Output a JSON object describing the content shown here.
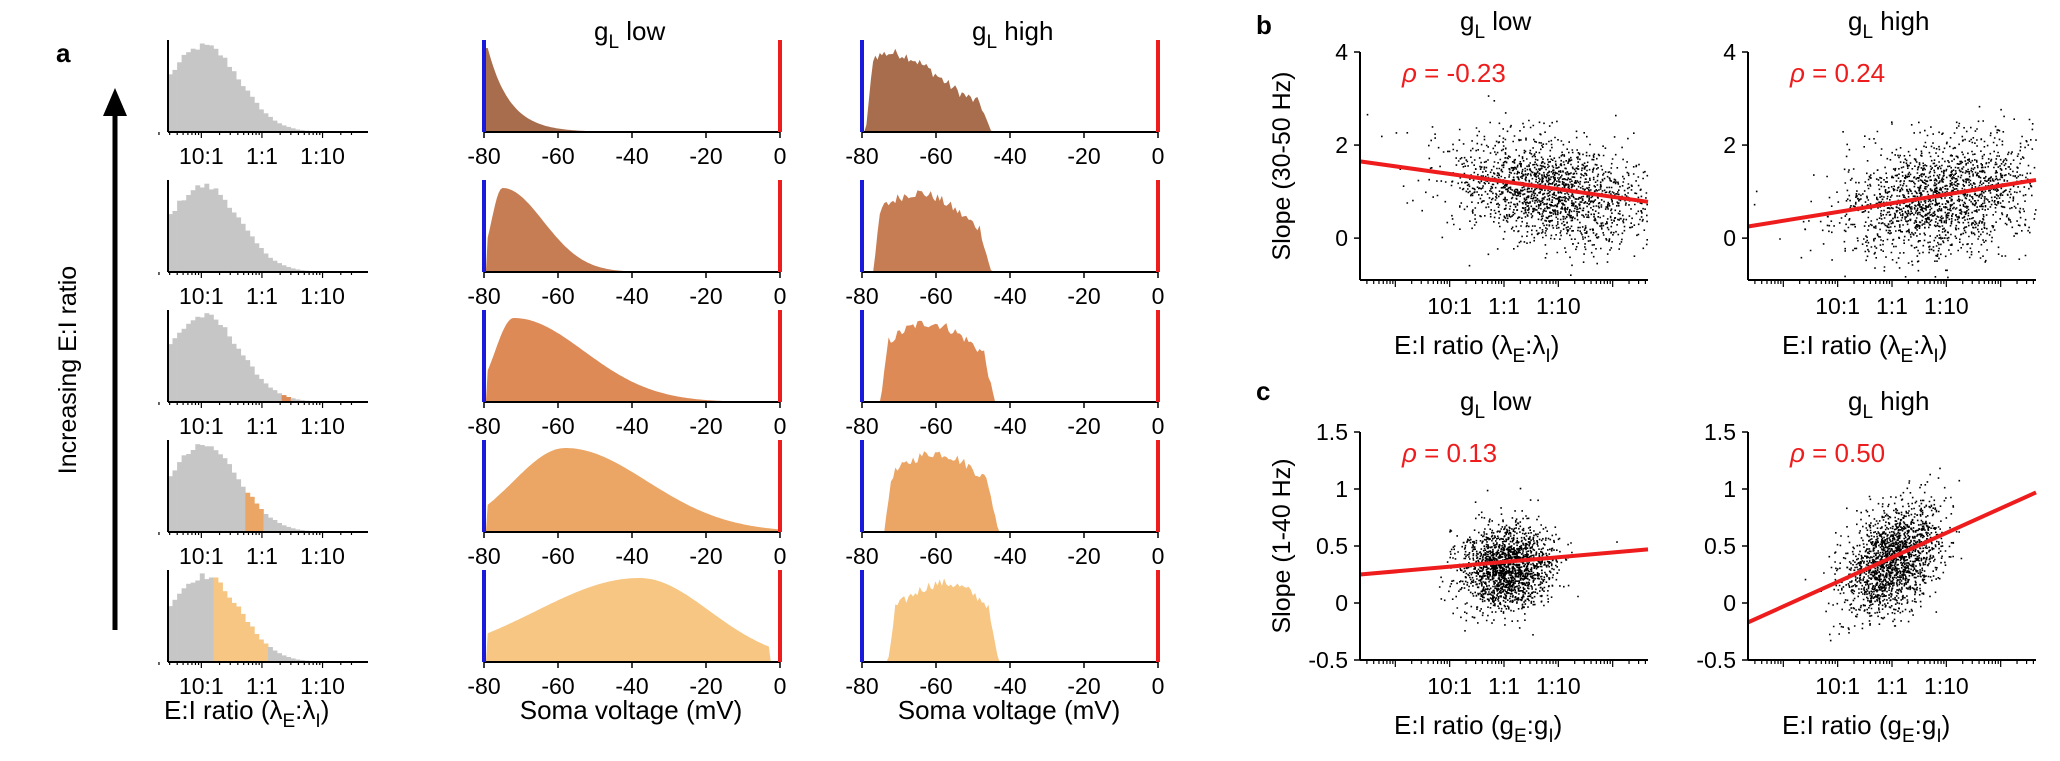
{
  "panel_labels": [
    "a",
    "b",
    "c"
  ],
  "side_label": "Increasing E:I ratio",
  "colors": {
    "gray": "#c6c6c6",
    "blue": "#1a1adc",
    "red": "#ee1c1c",
    "rows": [
      "#a86d4c",
      "#c77d53",
      "#dd8a57",
      "#eba666",
      "#f6c682"
    ]
  },
  "chart_data": [
    {
      "id": "a-ei-histograms",
      "type": "area",
      "description_rows": 5,
      "x_scale": "log",
      "xticklabels": [
        "10:1",
        "1:1",
        "1:10"
      ],
      "xlabel_parts": [
        "E:I ratio (λ",
        "E",
        ":λ",
        "I",
        ")"
      ],
      "gray_distribution_peak": "1:10",
      "highlighted_bins": [
        {
          "row": 1,
          "range": [
            "1:25",
            "1:40"
          ]
        },
        {
          "row": 2,
          "range": [
            "1:7",
            "1:11"
          ]
        },
        {
          "row": 3,
          "range": [
            "1:2",
            "1:3"
          ]
        },
        {
          "row": 4,
          "range": [
            "1:1.1",
            "2:1"
          ]
        },
        {
          "row": 5,
          "range": [
            "1:1.2",
            "6:1"
          ]
        }
      ]
    },
    {
      "id": "a-voltage-gl-low",
      "type": "area",
      "title_main": "g",
      "title_sub": "L",
      "title_rest": " low",
      "xlim": [
        -80,
        0
      ],
      "xticks": [
        -80,
        -60,
        -40,
        -20,
        0
      ],
      "xticklabels": [
        "-80",
        "-60",
        "-40",
        "-20",
        "0"
      ],
      "xlabel": "Soma voltage (mV)",
      "markers": {
        "blue_at": -80,
        "red_at": 0
      },
      "rows": [
        {
          "row": 1,
          "shape": "decay",
          "peak_x": -79,
          "width": 6
        },
        {
          "row": 2,
          "shape": "skewed",
          "peak_x": -75,
          "left": 3,
          "right": 11
        },
        {
          "row": 3,
          "shape": "skewed",
          "peak_x": -72,
          "left": 5,
          "right": 19
        },
        {
          "row": 4,
          "shape": "skewed",
          "peak_x": -58,
          "left": 14,
          "right": 22
        },
        {
          "row": 5,
          "shape": "skewed",
          "peak_x": -38,
          "left": 28,
          "right": 19,
          "cutoff": -3
        }
      ]
    },
    {
      "id": "a-voltage-gl-high",
      "type": "area",
      "title_main": "g",
      "title_sub": "L",
      "title_rest": " high",
      "xlim": [
        -80,
        0
      ],
      "xticks": [
        -80,
        -60,
        -40,
        -20,
        0
      ],
      "xticklabels": [
        "-80",
        "-60",
        "-40",
        "-20",
        "0"
      ],
      "xlabel": "Soma voltage (mV)",
      "markers": {
        "blue_at": -80,
        "red_at": 0
      },
      "rows": [
        {
          "row": 1,
          "range": [
            -79,
            -45
          ],
          "peak_x": -72
        },
        {
          "row": 2,
          "range": [
            -77,
            -45
          ],
          "peak_x": -65
        },
        {
          "row": 3,
          "range": [
            -75,
            -44
          ],
          "peak_x": -62
        },
        {
          "row": 4,
          "range": [
            -74,
            -43
          ],
          "peak_x": -60
        },
        {
          "row": 5,
          "range": [
            -73,
            -43
          ],
          "peak_x": -58
        }
      ]
    },
    {
      "id": "b-left",
      "type": "scatter",
      "title_main": "g",
      "title_sub": "L",
      "title_rest": " low",
      "x_scale": "log",
      "xlim": [
        2.65,
        -2.65
      ],
      "xticklabels": [
        "10:1",
        "1:1",
        "1:10"
      ],
      "xlabel_parts": [
        "E:I ratio (λ",
        "E",
        ":λ",
        "I",
        ")"
      ],
      "ylabel": "Slope (30-50 Hz)",
      "ylim": [
        -0.9,
        4
      ],
      "yticks": [
        0,
        2,
        4
      ],
      "cloud": {
        "x_center": -0.9,
        "x_spread": 0.9,
        "y_center": 1.0,
        "y_spread": 0.55,
        "n": 1800
      },
      "fit": {
        "x": [
          2.65,
          -2.65
        ],
        "y": [
          1.65,
          0.78
        ]
      },
      "rho_label": "ρ",
      "rho_value": " = -0.23"
    },
    {
      "id": "b-right",
      "type": "scatter",
      "title_main": "g",
      "title_sub": "L",
      "title_rest": " high",
      "x_scale": "log",
      "xlim": [
        2.65,
        -2.65
      ],
      "xticklabels": [
        "10:1",
        "1:1",
        "1:10"
      ],
      "xlabel_parts": [
        "E:I ratio (λ",
        "E",
        ":λ",
        "I",
        ")"
      ],
      "ylabel": "",
      "ylim": [
        -0.9,
        4
      ],
      "yticks": [
        0,
        2,
        4
      ],
      "cloud": {
        "x_center": -0.9,
        "x_spread": 0.9,
        "y_center": 0.9,
        "y_spread": 0.6,
        "n": 1800
      },
      "fit": {
        "x": [
          2.65,
          -2.65
        ],
        "y": [
          0.25,
          1.25
        ]
      },
      "rho_label": "ρ",
      "rho_value": " = 0.24"
    },
    {
      "id": "c-left",
      "type": "scatter",
      "title_main": "g",
      "title_sub": "L",
      "title_rest": " low",
      "x_scale": "log",
      "xlim": [
        2.65,
        -2.65
      ],
      "xticklabels": [
        "10:1",
        "1:1",
        "1:10"
      ],
      "xlabel_parts": [
        "E:I ratio (g",
        "E",
        ":g",
        "I",
        ")"
      ],
      "ylabel": "Slope (1-40 Hz)",
      "ylim": [
        -0.5,
        1.5
      ],
      "yticks": [
        -0.5,
        0,
        0.5,
        1,
        1.5
      ],
      "yticklabels": [
        "-0.5",
        "0",
        "0.5",
        "1",
        "1.5"
      ],
      "cloud": {
        "x_center": -0.05,
        "x_spread": 0.42,
        "y_center": 0.32,
        "y_spread": 0.18,
        "n": 1800
      },
      "fit": {
        "x": [
          2.65,
          -2.65
        ],
        "y": [
          0.25,
          0.47
        ]
      },
      "rho_label": "ρ",
      "rho_value": " = 0.13"
    },
    {
      "id": "c-right",
      "type": "scatter",
      "title_main": "g",
      "title_sub": "L",
      "title_rest": " high",
      "x_scale": "log",
      "xlim": [
        2.65,
        -2.65
      ],
      "xticklabels": [
        "10:1",
        "1:1",
        "1:10"
      ],
      "xlabel_parts": [
        "E:I ratio (g",
        "E",
        ":g",
        "I",
        ")"
      ],
      "ylabel": "",
      "ylim": [
        -0.5,
        1.5
      ],
      "yticks": [
        -0.5,
        0,
        0.5,
        1,
        1.5
      ],
      "yticklabels": [
        "-0.5",
        "0",
        "0.5",
        "1",
        "1.5"
      ],
      "cloud": {
        "x_center": 0.0,
        "x_spread": 0.42,
        "y_center": 0.38,
        "y_spread": 0.22,
        "n": 1800
      },
      "fit": {
        "x": [
          2.65,
          -2.65
        ],
        "y": [
          -0.17,
          0.97
        ]
      },
      "rho_label": "ρ",
      "rho_value": " = 0.50"
    }
  ]
}
